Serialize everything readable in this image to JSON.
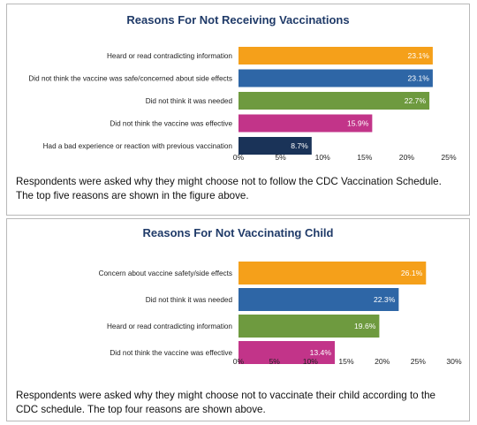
{
  "colors": {
    "title": "#1f3a68"
  },
  "chart_data": [
    {
      "type": "bar",
      "orientation": "horizontal",
      "title": "Reasons For Not Receiving Vaccinations",
      "categories": [
        "Heard or read contradicting information",
        "Did not think the vaccine was safe/concerned about side effects",
        "Did not think it was needed",
        "Did not think the vaccine was effective",
        "Had a bad experience or reaction with previous vaccination"
      ],
      "values": [
        23.1,
        23.1,
        22.7,
        15.9,
        8.7
      ],
      "value_labels": [
        "23.1%",
        "23.1%",
        "22.7%",
        "15.9%",
        "8.7%"
      ],
      "colors": [
        "#f5a01a",
        "#2e66a6",
        "#6e9a3f",
        "#c23489",
        "#1a3358"
      ],
      "xlim": [
        0,
        25
      ],
      "xticks": [
        "0%",
        "5%",
        "10%",
        "15%",
        "20%",
        "25%"
      ],
      "grid": false,
      "caption": "Respondents were asked why they might choose not to follow the CDC Vaccination Schedule. The top five reasons are shown in the figure above."
    },
    {
      "type": "bar",
      "orientation": "horizontal",
      "title": "Reasons For Not Vaccinating Child",
      "categories": [
        "Concern about vaccine safety/side effects",
        "Did not think it was needed",
        "Heard or read contradicting information",
        "Did not think the vaccine was effective"
      ],
      "values": [
        26.1,
        22.3,
        19.6,
        13.4
      ],
      "value_labels": [
        "26.1%",
        "22.3%",
        "19.6%",
        "13.4%"
      ],
      "colors": [
        "#f5a01a",
        "#2e66a6",
        "#6e9a3f",
        "#c23489"
      ],
      "xlim": [
        0,
        30
      ],
      "xticks": [
        "0%",
        "5%",
        "10%",
        "15%",
        "20%",
        "25%",
        "30%"
      ],
      "grid": false,
      "caption": "Respondents were asked why they might choose not to vaccinate their child according to the CDC schedule. The top four reasons are shown above."
    }
  ]
}
